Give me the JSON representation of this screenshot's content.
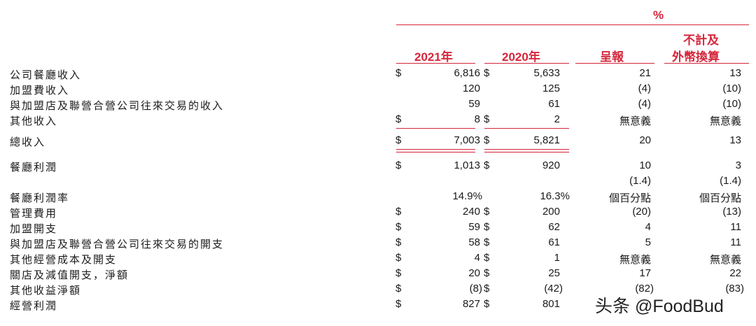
{
  "header": {
    "percent_symbol": "%",
    "col_2021": "2021年",
    "col_2020": "2020年",
    "col_reported": "呈報",
    "col_exfx_line1": "不計及",
    "col_exfx_line2": "外幣換算"
  },
  "rows": [
    {
      "label": "公司餐廳收入",
      "d1": "$",
      "v1": "6,816",
      "d2": "$",
      "v2": "5,633",
      "v3": "21",
      "v4": "13"
    },
    {
      "label": "加盟費收入",
      "d1": "",
      "v1": "120",
      "d2": "",
      "v2": "125",
      "v3": "(4)",
      "v4": "(10)"
    },
    {
      "label": "與加盟店及聯營合營公司往來交易的收入",
      "d1": "",
      "v1": "59",
      "d2": "",
      "v2": "61",
      "v3": "(4)",
      "v4": "(10)"
    },
    {
      "label": "其他收入",
      "d1": "$",
      "v1": "8",
      "d2": "$",
      "v2": "2",
      "v3": "無意義",
      "v4": "無意義"
    },
    {
      "label": "總收入",
      "d1": "$",
      "v1": "7,003",
      "d2": "$",
      "v2": "5,821",
      "v3": "20",
      "v4": "13"
    },
    {
      "label": "餐廳利潤",
      "d1": "$",
      "v1": "1,013",
      "d2": "$",
      "v2": "920",
      "v3": "10",
      "v4": "3"
    },
    {
      "label": "",
      "d1": "",
      "v1": "",
      "d2": "",
      "v2": "",
      "v3": "(1.4)",
      "v4": "(1.4)"
    },
    {
      "label": "餐廳利潤率",
      "d1": "",
      "v1": "14.9%",
      "d2": "",
      "v2": "16.3%",
      "v3": "個百分點",
      "v4": "個百分點"
    },
    {
      "label": "管理費用",
      "d1": "$",
      "v1": "240",
      "d2": "$",
      "v2": "200",
      "v3": "(20)",
      "v4": "(13)"
    },
    {
      "label": "加盟開支",
      "d1": "$",
      "v1": "59",
      "d2": "$",
      "v2": "62",
      "v3": "4",
      "v4": "11"
    },
    {
      "label": "與加盟店及聯營合營公司往來交易的開支",
      "d1": "$",
      "v1": "58",
      "d2": "$",
      "v2": "61",
      "v3": "5",
      "v4": "11"
    },
    {
      "label": "其他經營成本及開支",
      "d1": "$",
      "v1": "4",
      "d2": "$",
      "v2": "1",
      "v3": "無意義",
      "v4": "無意義"
    },
    {
      "label": "關店及減值開支，淨額",
      "d1": "$",
      "v1": "20",
      "d2": "$",
      "v2": "25",
      "v3": "17",
      "v4": "22"
    },
    {
      "label": "其他收益淨額",
      "d1": "$",
      "v1": "(8)",
      "d2": "$",
      "v2": "(42)",
      "v3": "(82)",
      "v4": "(83)"
    },
    {
      "label": "經營利潤",
      "d1": "$",
      "v1": "827",
      "d2": "$",
      "v2": "801",
      "v3": "",
      "v4": ""
    }
  ],
  "watermark": "头条 @FoodBud"
}
